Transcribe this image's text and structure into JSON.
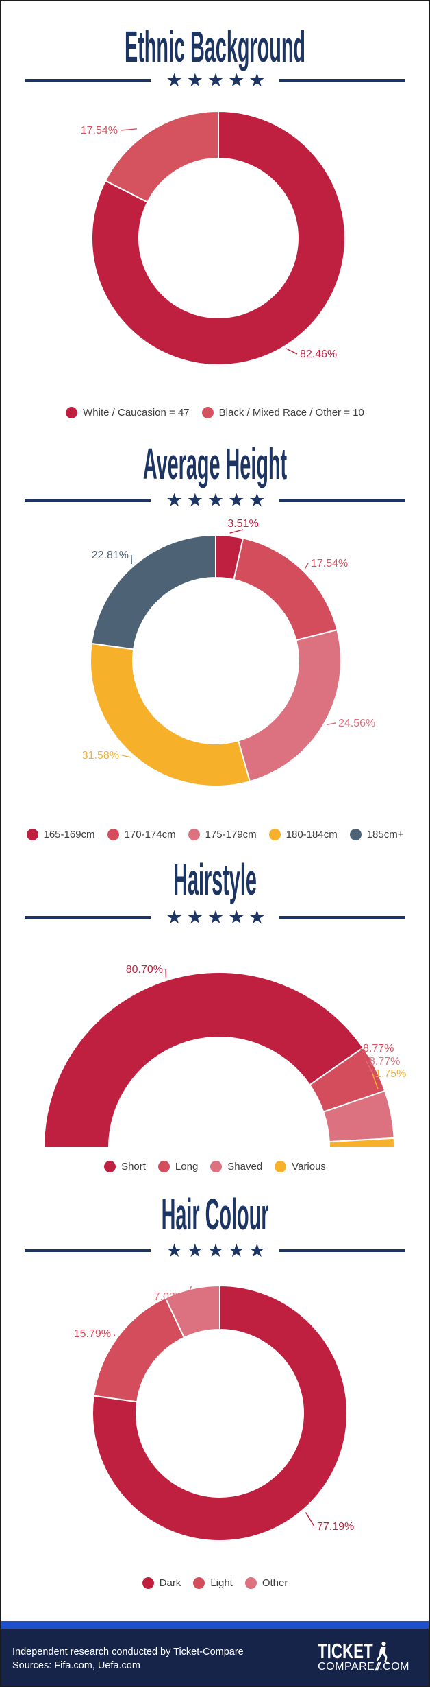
{
  "page": {
    "divider_stars": "★★★★★",
    "colors": {
      "navy": "#1d3563",
      "crimson": "#c02040",
      "red": "#d44d5c",
      "rose": "#dc717f",
      "yellow": "#f6b02a",
      "slate": "#4d6375",
      "footer_bg": "#16244a",
      "footer_strip": "#1c50cf"
    }
  },
  "chart_data": [
    {
      "id": "ethnic_background",
      "type": "donut",
      "title": "Ethnic Background",
      "unit": "%",
      "slices": [
        {
          "name": "White / Caucasion",
          "value": 82.46,
          "label": "82.46%",
          "count": 47,
          "color": "#c02040"
        },
        {
          "name": "Black / Mixed Race / Other",
          "value": 17.54,
          "label": "17.54%",
          "count": 10,
          "color": "#d5525f"
        }
      ],
      "legend": [
        "White / Caucasion = 47",
        "Black / Mixed Race / Other = 10"
      ]
    },
    {
      "id": "average_height",
      "type": "donut",
      "title": "Average Height",
      "unit": "%",
      "slices": [
        {
          "name": "165-169cm",
          "value": 3.51,
          "label": "3.51%",
          "color": "#c02040"
        },
        {
          "name": "170-174cm",
          "value": 17.54,
          "label": "17.54%",
          "color": "#d44d5c"
        },
        {
          "name": "175-179cm",
          "value": 24.56,
          "label": "24.56%",
          "color": "#dc717f"
        },
        {
          "name": "180-184cm",
          "value": 31.58,
          "label": "31.58%",
          "color": "#f6b02a"
        },
        {
          "name": "185cm+",
          "value": 22.81,
          "label": "22.81%",
          "color": "#4d6375"
        }
      ],
      "legend": [
        "165-169cm",
        "170-174cm",
        "175-179cm",
        "180-184cm",
        "185cm+"
      ]
    },
    {
      "id": "hairstyle",
      "type": "half-donut",
      "title": "Hairstyle",
      "unit": "%",
      "slices": [
        {
          "name": "Short",
          "value": 80.7,
          "label": "80.70%",
          "color": "#c02040"
        },
        {
          "name": "Long",
          "value": 8.77,
          "label": "8.77%",
          "color": "#d44d5c"
        },
        {
          "name": "Shaved",
          "value": 8.77,
          "label": "8.77%",
          "color": "#dc717f"
        },
        {
          "name": "Various",
          "value": 1.75,
          "label": "1.75%",
          "color": "#f6b02a"
        }
      ],
      "legend": [
        "Short",
        "Long",
        "Shaved",
        "Various"
      ]
    },
    {
      "id": "hair_colour",
      "type": "donut",
      "title": "Hair Colour",
      "unit": "%",
      "slices": [
        {
          "name": "Dark",
          "value": 77.19,
          "label": "77.19%",
          "color": "#c02040"
        },
        {
          "name": "Light",
          "value": 15.79,
          "label": "15.79%",
          "color": "#d44d5c"
        },
        {
          "name": "Other",
          "value": 7.02,
          "label": "7.02%",
          "color": "#dc717f"
        }
      ],
      "legend": [
        "Dark",
        "Light",
        "Other"
      ]
    }
  ],
  "footer": {
    "line1": "Independent research conducted by Ticket-Compare",
    "line2": "Sources: Fifa.com, Uefa.com",
    "logo_top": "TICKET",
    "logo_bottom": "COMPARE",
    "logo_slashes": "//",
    "logo_suffix": ".COM"
  }
}
